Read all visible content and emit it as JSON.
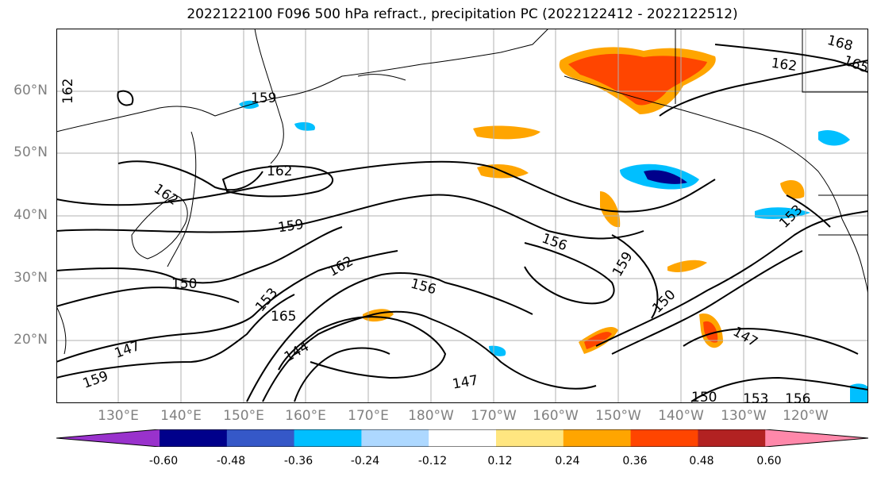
{
  "title": "2022122100 F096 500 hPa refract., precipitation PC (2022122412 - 2022122512)",
  "lat_labels": [
    "60°N",
    "50°N",
    "40°N",
    "30°N",
    "20°N"
  ],
  "lon_labels": [
    "130°E",
    "140°E",
    "150°E",
    "160°E",
    "170°E",
    "180°W",
    "170°W",
    "160°W",
    "150°W",
    "140°W",
    "130°W",
    "120°W"
  ],
  "contour_labels": [
    "162",
    "159",
    "162",
    "162",
    "159",
    "150",
    "162",
    "153",
    "156",
    "165",
    "144",
    "147",
    "159",
    "156",
    "159",
    "150",
    "147",
    "147",
    "153",
    "150",
    "153",
    "156",
    "162",
    "168",
    "165"
  ],
  "colorbar": {
    "ticks": [
      "-0.60",
      "-0.48",
      "-0.36",
      "-0.24",
      "-0.12",
      "0.12",
      "0.24",
      "0.36",
      "0.48",
      "0.60"
    ],
    "colors": [
      "#9932cc",
      "#00008b",
      "#3558c8",
      "#00bfff",
      "#add8ff",
      "#ffffff",
      "#ffe680",
      "#ffa500",
      "#ff4500",
      "#b22222",
      "#ff88aa"
    ]
  }
}
